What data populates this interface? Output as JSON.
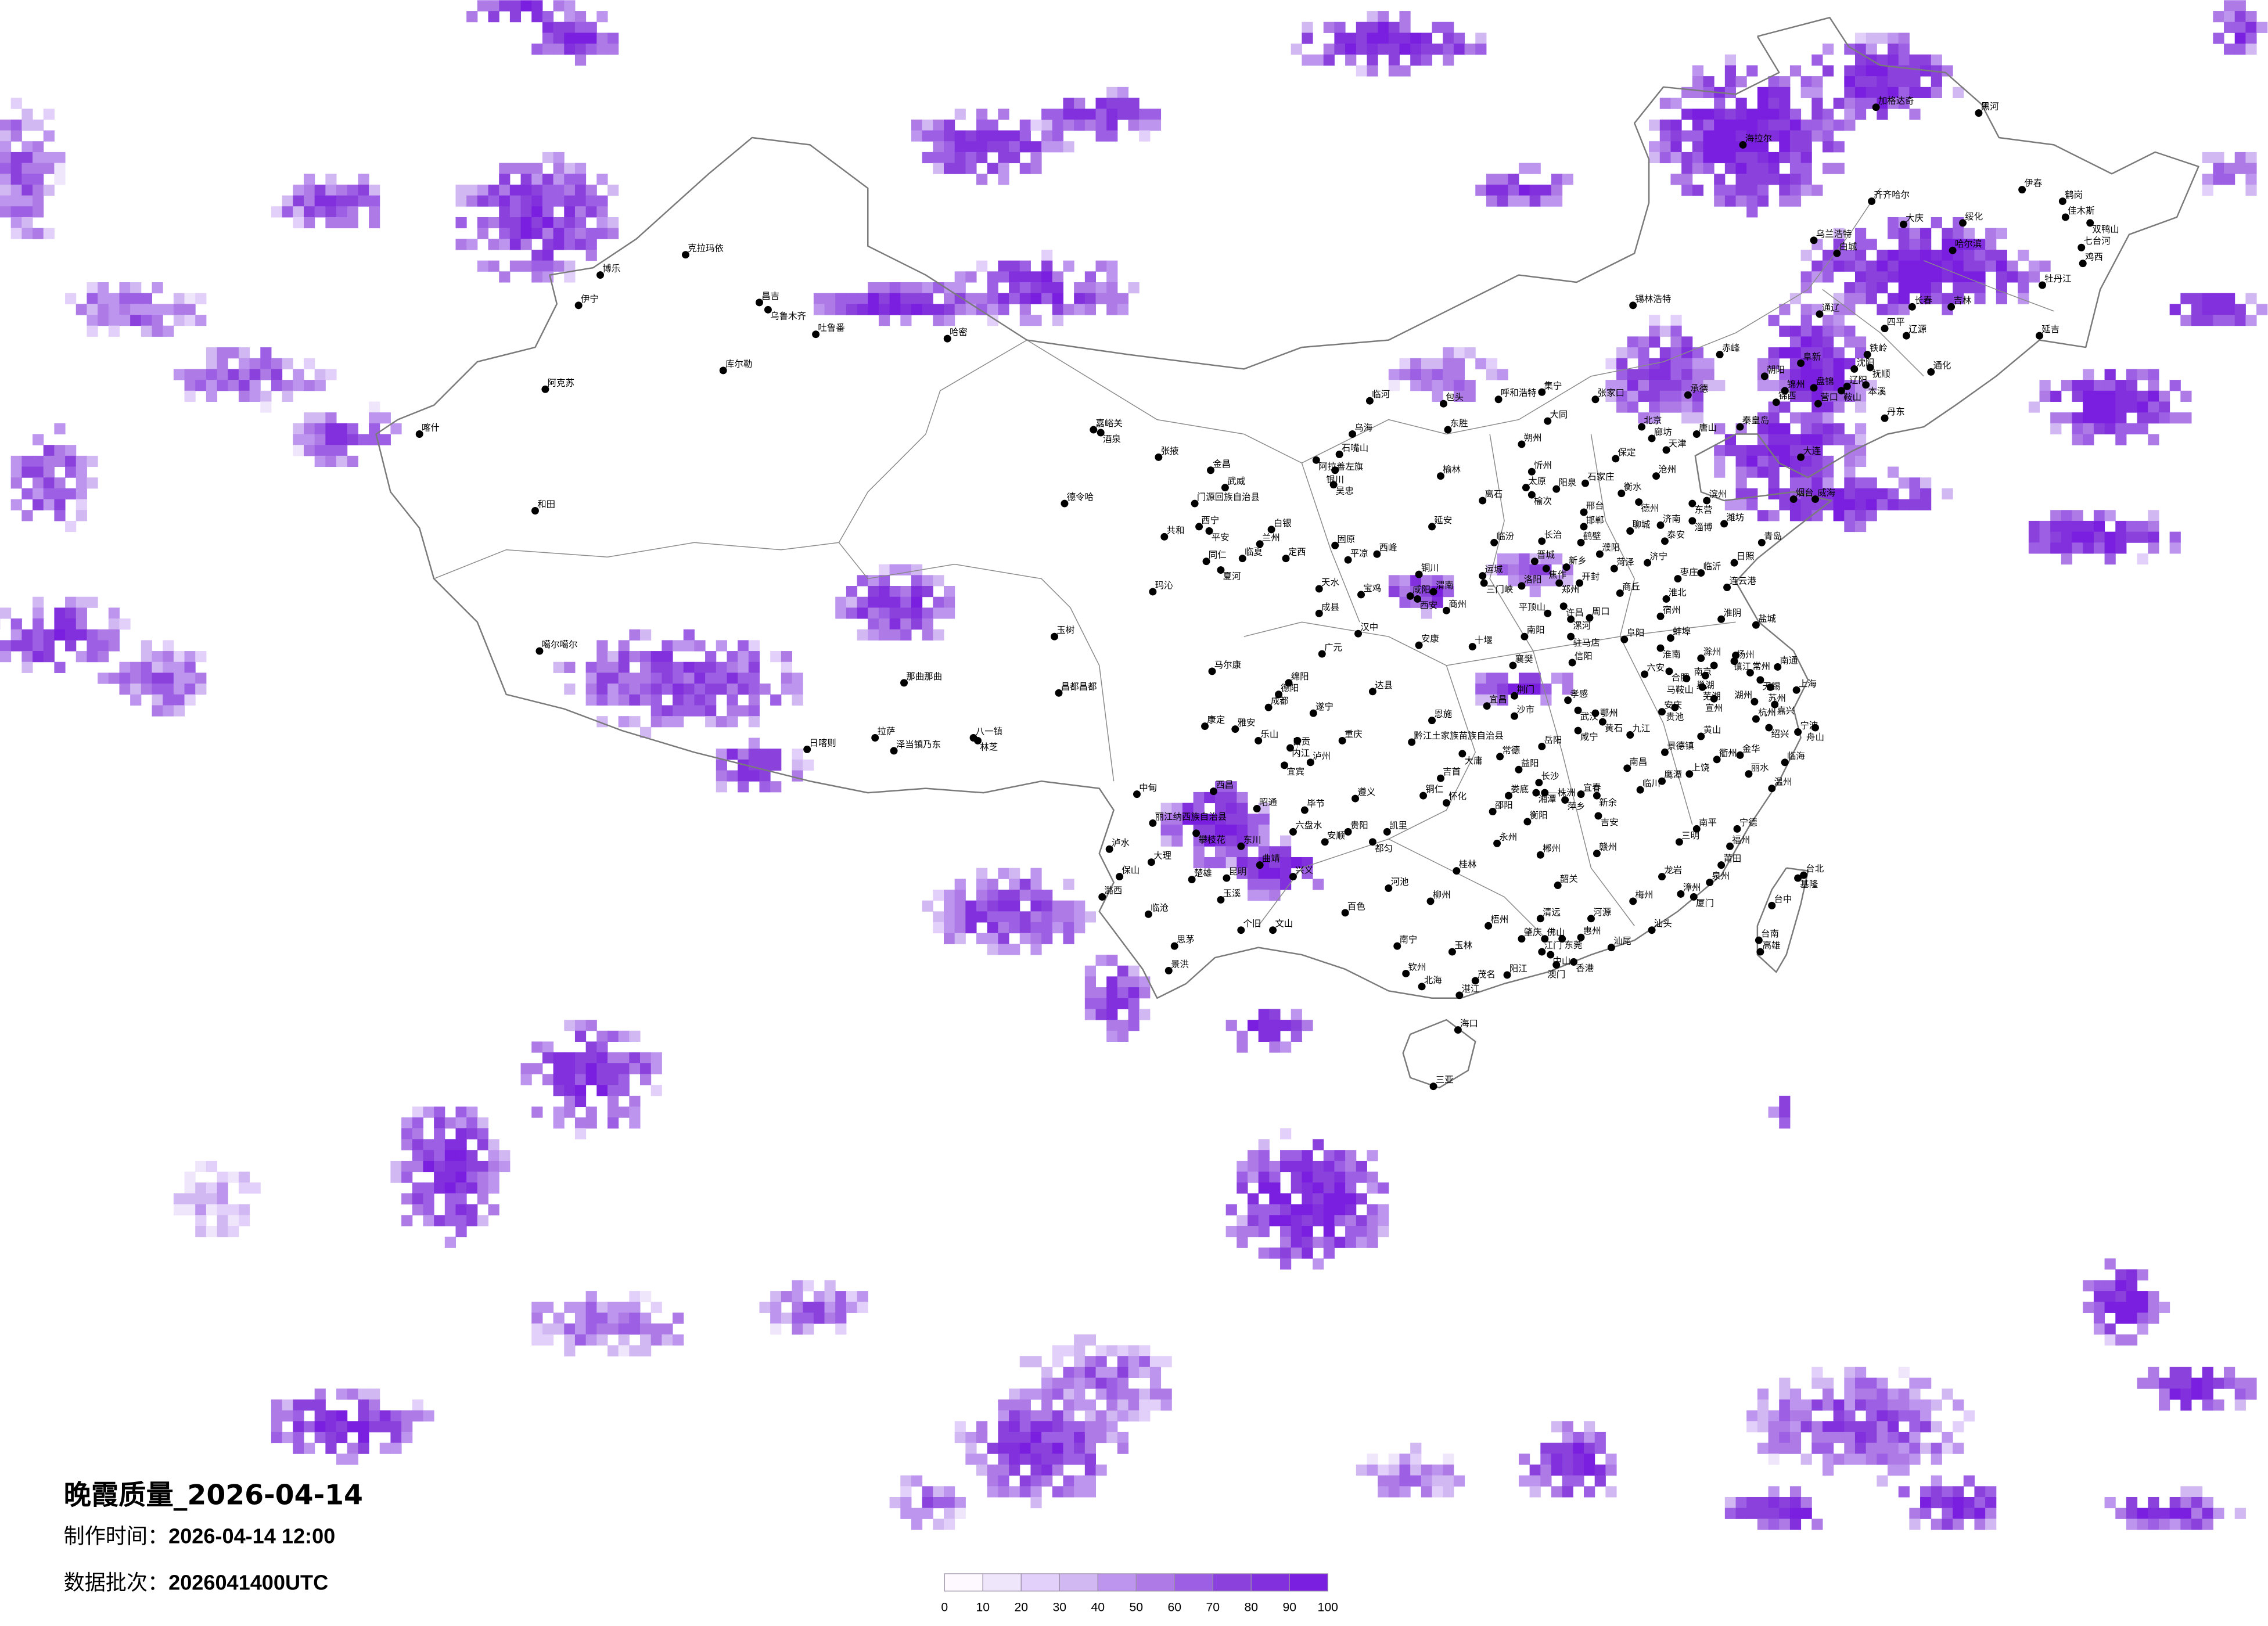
{
  "title": "晚霞质量_2026-04-14",
  "production_time_label": "制作时间：",
  "production_time": "2026-04-14 12:00",
  "batch_label": "数据批次：",
  "batch": "2026041400UTC",
  "legend": {
    "ticks": [
      "0",
      "10",
      "20",
      "30",
      "40",
      "50",
      "60",
      "70",
      "80",
      "90",
      "100"
    ],
    "colors": [
      "#fdf9ff",
      "#f0e6fc",
      "#e3d0fa",
      "#d2b8f2",
      "#bd94ee",
      "#ad7ae6",
      "#9d5fe4",
      "#8b42dd",
      "#8230dd",
      "#7a1fdf"
    ]
  },
  "border_color": "#7a7a7a",
  "cities": [
    "克拉玛依",
    "博乐",
    "伊宁",
    "昌吉",
    "乌鲁木齐",
    "吐鲁番",
    "哈密",
    "库尔勒",
    "阿克苏",
    "喀什",
    "和田",
    "噶尔噶尔",
    "日喀则",
    "拉萨",
    "泽当镇乃东",
    "那曲那曲",
    "八一镇",
    "林芝",
    "昌都昌都",
    "玉树",
    "德令哈",
    "嘉峪关",
    "酒泉",
    "张掖",
    "金昌",
    "武威",
    "门源回族自治县",
    "西宁",
    "平安",
    "共和",
    "白银",
    "兰州",
    "临夏",
    "同仁",
    "夏河",
    "定西",
    "玛沁",
    "临河",
    "包头",
    "呼和浩特",
    "乌海",
    "东胜",
    "石嘴山",
    "阿拉善左旗",
    "银川",
    "吴忠",
    "榆林",
    "延安",
    "固原",
    "平凉",
    "西峰",
    "铜川",
    "天水",
    "宝鸡",
    "咸阳",
    "渭南",
    "西安",
    "商州",
    "成县",
    "汉中",
    "安康",
    "十堰",
    "马尔康",
    "广元",
    "绵阳",
    "德阳",
    "达县",
    "成都",
    "遂宁",
    "恩施",
    "康定",
    "雅安",
    "乐山",
    "自贡",
    "内江",
    "重庆",
    "黔江土家族苗族自治县",
    "大庸",
    "宜宾",
    "泸州",
    "西昌",
    "中甸",
    "昭通",
    "毕节",
    "遵义",
    "丽江纳西族自治县",
    "攀枝花",
    "六盘水",
    "贵阳",
    "凯里",
    "安顺",
    "都匀",
    "东川",
    "泸水",
    "大理",
    "曲靖",
    "保山",
    "楚雄",
    "昆明",
    "兴义",
    "潞西",
    "玉溪",
    "临沧",
    "百色",
    "个旧",
    "文山",
    "思茅",
    "景洪",
    "河池",
    "柳州",
    "桂林",
    "梧州",
    "玉林",
    "南宁",
    "钦州",
    "北海",
    "湛江",
    "茂名",
    "阳江",
    "海口",
    "三亚",
    "铜仁",
    "怀化",
    "吉首",
    "邵阳",
    "娄底",
    "益阳",
    "长沙",
    "湘潭",
    "株洲",
    "萍乡",
    "宜春",
    "新余",
    "吉安",
    "南昌",
    "衡阳",
    "永州",
    "郴州",
    "赣州",
    "韶关",
    "梅州",
    "清远",
    "河源",
    "肇庆",
    "佛山",
    "东莞",
    "惠州",
    "江门",
    "中山",
    "香港",
    "澳门",
    "汕尾",
    "加格达奇",
    "黑河",
    "海拉尔",
    "伊春",
    "齐齐哈尔",
    "鹤岗",
    "佳木斯",
    "双鸭山",
    "大庆",
    "绥化",
    "乌兰浩特",
    "白城",
    "哈尔滨",
    "七台河",
    "鸡西",
    "牡丹江",
    "锡林浩特",
    "长春",
    "吉林",
    "通辽",
    "四平",
    "辽源",
    "延吉",
    "赤峰",
    "铁岭",
    "阜新",
    "沈阳",
    "抚顺",
    "通化",
    "朝阳",
    "集宁",
    "张家口",
    "承德",
    "锦州",
    "盘锦",
    "辽阳",
    "鞍山",
    "本溪",
    "锦西",
    "营口",
    "丹东",
    "大同",
    "朔州",
    "忻州",
    "太原",
    "榆次",
    "阳泉",
    "石家庄",
    "离石",
    "北京",
    "廊坊",
    "天津",
    "保定",
    "唐山",
    "秦皇岛",
    "沧州",
    "大连",
    "衡水",
    "德州",
    "滨州",
    "东营",
    "烟台",
    "威海",
    "邢台",
    "邯郸",
    "济南",
    "淄博",
    "潍坊",
    "聊城",
    "泰安",
    "青岛",
    "临汾",
    "长治",
    "鹤壁",
    "濮阳",
    "晋城",
    "焦作",
    "新乡",
    "菏泽",
    "济宁",
    "日照",
    "临沂",
    "枣庄",
    "运城",
    "三门峡",
    "洛阳",
    "郑州",
    "开封",
    "连云港",
    "商丘",
    "淮北",
    "许昌",
    "平顶山",
    "漯河",
    "周口",
    "宿州",
    "淮阴",
    "盐城",
    "南阳",
    "驻马店",
    "阜阳",
    "蚌埠",
    "淮南",
    "信阳",
    "襄樊",
    "滁州",
    "扬州",
    "镇江",
    "南通",
    "六安",
    "合肥",
    "南京",
    "常州",
    "巢湖",
    "马鞍山",
    "芜湖",
    "无锡",
    "苏州",
    "上海",
    "荆门",
    "孝感",
    "宜昌",
    "宣州",
    "湖州",
    "嘉兴",
    "武汉",
    "鄂州",
    "黄石",
    "安庆",
    "贵池",
    "沙市",
    "杭州",
    "绍兴",
    "宁波",
    "舟山",
    "咸宁",
    "九江",
    "黄山",
    "岳阳",
    "常德",
    "景德镇",
    "衢州",
    "金华",
    "临海",
    "鹰潭",
    "上饶",
    "丽水",
    "临川",
    "温州",
    "南平",
    "宁德",
    "三明",
    "福州",
    "莆田",
    "龙岩",
    "泉州",
    "漳州",
    "厦门",
    "汕头",
    "台北",
    "基隆",
    "台中",
    "台南",
    "高雄"
  ]
}
